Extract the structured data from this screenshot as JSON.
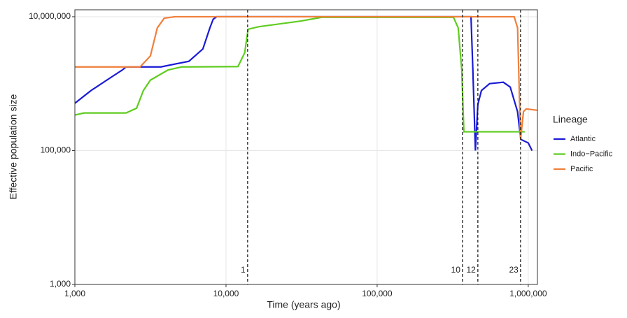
{
  "chart_data": {
    "type": "line",
    "x_label": "Time (years ago)",
    "y_label": "Effective population size",
    "xscale": "log",
    "yscale": "log",
    "grid": true,
    "xlim": [
      1000,
      1150000
    ],
    "ylim": [
      1000,
      12700000
    ],
    "xticks": [
      {
        "value": 1000,
        "label": "1,000"
      },
      {
        "value": 10000,
        "label": "10,000"
      },
      {
        "value": 100000,
        "label": "100,000"
      },
      {
        "value": 1000000,
        "label": "1,000,000"
      }
    ],
    "yticks": [
      {
        "value": 1000,
        "label": "1,000"
      },
      {
        "value": 100000,
        "label": "100,000"
      },
      {
        "value": 10000000,
        "label": "10,000,000"
      }
    ],
    "legend_title": "Lineage",
    "legend_position": "right",
    "series": [
      {
        "name": "Atlantic",
        "color": "#1a1ad6",
        "x": [
          1000,
          1280,
          1760,
          2060,
          2180,
          3710,
          5680,
          7030,
          7820,
          8230,
          8680,
          418000,
          430000,
          447000,
          464000,
          490000,
          555000,
          684000,
          760000,
          849000,
          893000,
          1000000,
          1060000
        ],
        "values": [
          510000,
          790000,
          1270000,
          1600000,
          1780000,
          1780000,
          2160000,
          3300000,
          6800000,
          9200000,
          10000000,
          10000000,
          1600000,
          100000,
          490000,
          790000,
          1000000,
          1050000,
          890000,
          383000,
          147000,
          130000,
          100000
        ]
      },
      {
        "name": "Indo−Pacific",
        "color": "#5fcc1f",
        "x": [
          1000,
          1150,
          2180,
          2560,
          2840,
          3160,
          4130,
          5100,
          12000,
          13300,
          14000,
          16500,
          31100,
          43000,
          320000,
          344000,
          363000,
          375000,
          948000
        ],
        "values": [
          340000,
          365000,
          365000,
          430000,
          790000,
          1130000,
          1600000,
          1780000,
          1800000,
          2900000,
          6500000,
          7100000,
          8600000,
          9800000,
          9800000,
          6800000,
          1600000,
          191000,
          191000
        ]
      },
      {
        "name": "Pacific",
        "color": "#f07f3a",
        "x": [
          1000,
          2700,
          3160,
          3510,
          3900,
          4590,
          807000,
          850000,
          889000,
          930000,
          970000,
          1150000
        ],
        "values": [
          1780000,
          1780000,
          2600000,
          6800000,
          9500000,
          10000000,
          10000000,
          6800000,
          147000,
          383000,
          420000,
          400000
        ]
      }
    ],
    "annotations": [
      {
        "x": 13900,
        "label": "1"
      },
      {
        "x": 367000,
        "label": "10"
      },
      {
        "x": 464000,
        "label": "12"
      },
      {
        "x": 889000,
        "label": "23"
      }
    ]
  }
}
